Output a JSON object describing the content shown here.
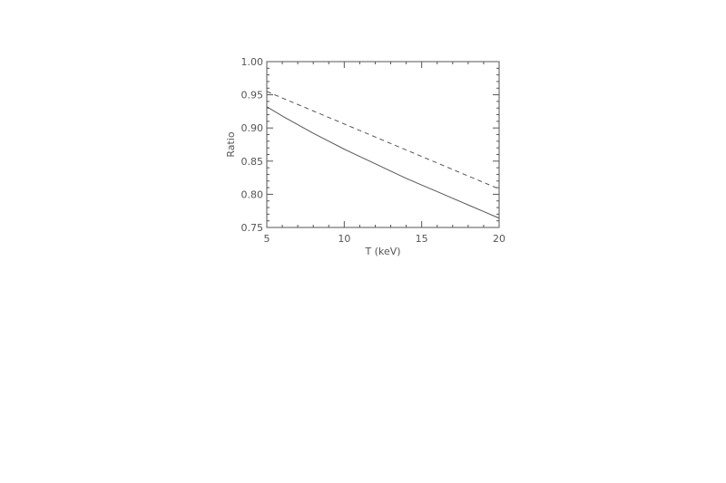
{
  "chart_data": {
    "type": "line",
    "title": "",
    "xlabel": "T (keV)",
    "ylabel": "Ratio",
    "xlim": [
      5,
      20
    ],
    "ylim": [
      0.75,
      1.0
    ],
    "x_ticks": [
      5,
      10,
      15,
      20
    ],
    "x_tick_labels": [
      "5",
      "10",
      "15",
      "20"
    ],
    "y_ticks": [
      0.75,
      0.8,
      0.85,
      0.9,
      0.95,
      1.0
    ],
    "y_tick_labels": [
      "0.75",
      "0.80",
      "0.85",
      "0.90",
      "0.95",
      "1.00"
    ],
    "x_minor_step": 1,
    "y_minor_step": 0.01,
    "grid": false,
    "legend": "none",
    "series": [
      {
        "style": "solid",
        "color": "#555555",
        "x": [
          5,
          6,
          7,
          8,
          9,
          10,
          11,
          12,
          13,
          14,
          15,
          16,
          17,
          18,
          19,
          20
        ],
        "y": [
          0.932,
          0.918,
          0.905,
          0.892,
          0.88,
          0.868,
          0.857,
          0.846,
          0.835,
          0.824,
          0.814,
          0.804,
          0.794,
          0.784,
          0.774,
          0.764
        ]
      },
      {
        "style": "dashed",
        "color": "#555555",
        "x": [
          5,
          20
        ],
        "y": [
          0.955,
          0.808
        ]
      }
    ]
  }
}
